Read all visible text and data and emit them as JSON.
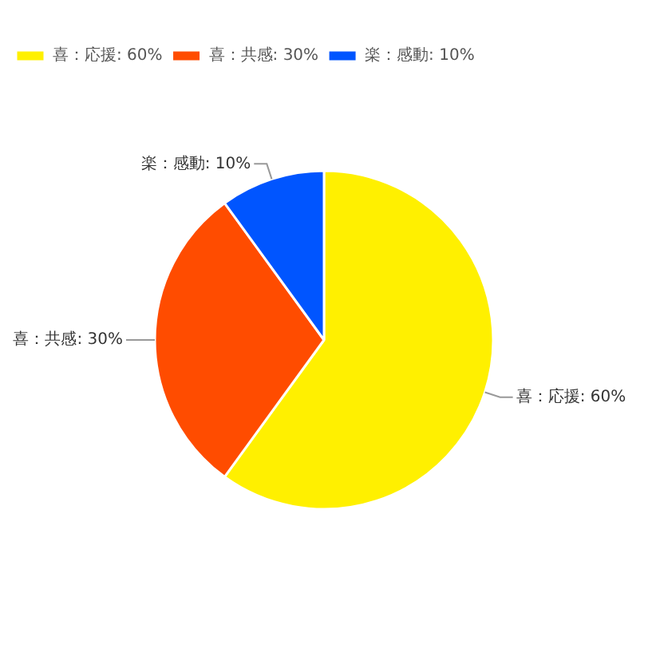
{
  "chart_data": {
    "type": "pie",
    "categories": [
      "喜：応援: 60%",
      "喜：共感: 30%",
      "楽：感動: 10%"
    ],
    "values": [
      60,
      30,
      10
    ],
    "colors": [
      "#fff000",
      "#ff4c00",
      "#0055ff"
    ],
    "legend": "top left"
  }
}
